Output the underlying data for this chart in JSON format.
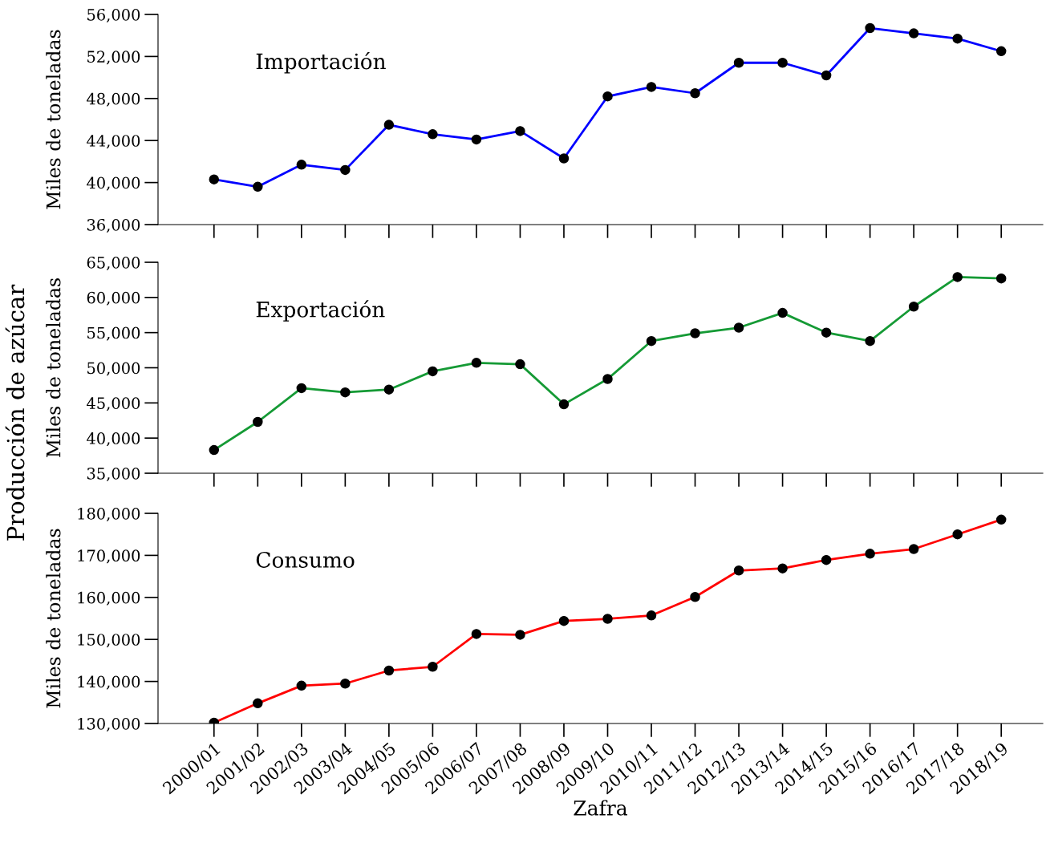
{
  "chart_data": [
    {
      "type": "line",
      "title": "Importación",
      "ylabel": "Miles de toneladas",
      "tick_labels": "y",
      "marker": "circle",
      "line_style": "solid",
      "grid": false,
      "categories": [
        "2000/01",
        "2001/02",
        "2002/03",
        "2003/04",
        "2004/05",
        "2005/06",
        "2006/07",
        "2007/08",
        "2008/09",
        "2009/10",
        "2010/11",
        "2011/12",
        "2012/13",
        "2013/14",
        "2014/15",
        "2015/16",
        "2016/17",
        "2017/18",
        "2018/19"
      ],
      "series": [
        {
          "color": "#0000ff",
          "values": [
            40300,
            39600,
            41700,
            41200,
            45500,
            44600,
            44100,
            44900,
            42300,
            48200,
            49100,
            48500,
            51400,
            51400,
            50200,
            54700,
            54200,
            53700,
            52500
          ]
        }
      ],
      "ylim": [
        36000,
        56000
      ],
      "yticks": [
        {
          "value": 36000,
          "label": "36,000"
        },
        {
          "value": 40000,
          "label": "40,000"
        },
        {
          "value": 44000,
          "label": "44,000"
        },
        {
          "value": 48000,
          "label": "48,000"
        },
        {
          "value": 52000,
          "label": "52,000"
        },
        {
          "value": 56000,
          "label": "56,000"
        }
      ]
    },
    {
      "type": "line",
      "title": "Exportación",
      "ylabel": "Miles de toneladas",
      "tick_labels": "y",
      "marker": "circle",
      "line_style": "solid",
      "grid": false,
      "annotations": [
        "Producción de azúcar"
      ],
      "categories": [
        "2000/01",
        "2001/02",
        "2002/03",
        "2003/04",
        "2004/05",
        "2005/06",
        "2006/07",
        "2007/08",
        "2008/09",
        "2009/10",
        "2010/11",
        "2011/12",
        "2012/13",
        "2013/14",
        "2014/15",
        "2015/16",
        "2016/17",
        "2017/18",
        "2018/19"
      ],
      "series": [
        {
          "color": "#159a35",
          "values": [
            38300,
            42300,
            47100,
            46500,
            46900,
            49500,
            50700,
            50500,
            44800,
            48400,
            53800,
            54900,
            55700,
            57800,
            55000,
            53800,
            58700,
            62900,
            62700
          ]
        }
      ],
      "ylim": [
        35000,
        65000
      ],
      "yticks": [
        {
          "value": 35000,
          "label": "35,000"
        },
        {
          "value": 40000,
          "label": "40,000"
        },
        {
          "value": 45000,
          "label": "45,000"
        },
        {
          "value": 50000,
          "label": "50,000"
        },
        {
          "value": 55000,
          "label": "55,000"
        },
        {
          "value": 60000,
          "label": "60,000"
        },
        {
          "value": 65000,
          "label": "65,000"
        }
      ]
    },
    {
      "type": "line",
      "title": "Consumo",
      "ylabel": "Miles de toneladas",
      "xlabel": "Zafra",
      "marker": "circle",
      "line_style": "solid",
      "grid": false,
      "categories": [
        "2000/01",
        "2001/02",
        "2002/03",
        "2003/04",
        "2004/05",
        "2005/06",
        "2006/07",
        "2007/08",
        "2008/09",
        "2009/10",
        "2010/11",
        "2011/12",
        "2012/13",
        "2013/14",
        "2014/15",
        "2015/16",
        "2016/17",
        "2017/18",
        "2018/19"
      ],
      "series": [
        {
          "color": "#ff0000",
          "values": [
            130200,
            134800,
            139000,
            139500,
            142600,
            143500,
            151300,
            151100,
            154400,
            154900,
            155700,
            160100,
            166400,
            166900,
            168900,
            170400,
            171500,
            175000,
            178500
          ]
        }
      ],
      "ylim": [
        130000,
        180000
      ],
      "yticks": [
        {
          "value": 130000,
          "label": "130,000"
        },
        {
          "value": 140000,
          "label": "140,000"
        },
        {
          "value": 150000,
          "label": "150,000"
        },
        {
          "value": 160000,
          "label": "160,000"
        },
        {
          "value": 170000,
          "label": "170,000"
        },
        {
          "value": 180000,
          "label": "180,000"
        }
      ]
    }
  ]
}
